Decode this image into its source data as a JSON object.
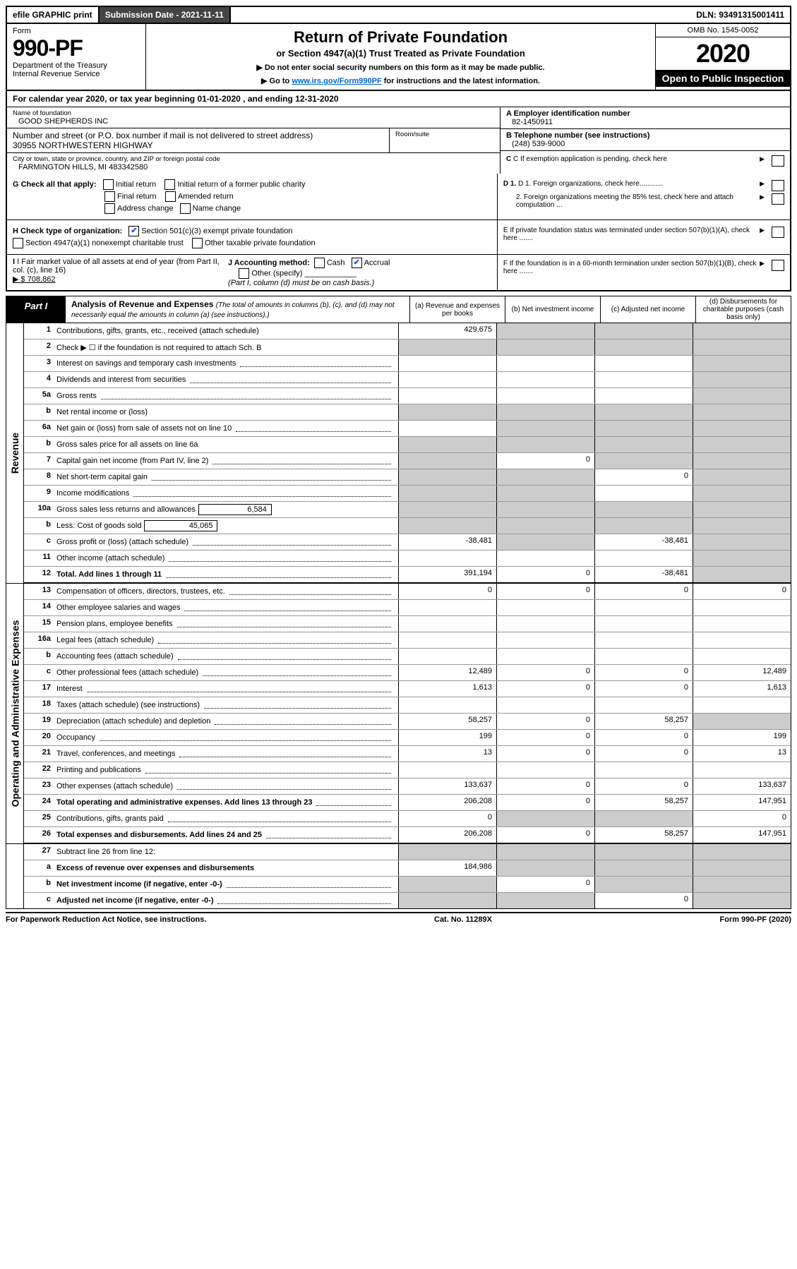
{
  "top": {
    "efile": "efile GRAPHIC print",
    "submission": "Submission Date - 2021-11-11",
    "dln": "DLN: 93491315001411"
  },
  "header": {
    "form_label": "Form",
    "form_num": "990-PF",
    "dept1": "Department of the Treasury",
    "dept2": "Internal Revenue Service",
    "title": "Return of Private Foundation",
    "subtitle": "or Section 4947(a)(1) Trust Treated as Private Foundation",
    "instr1": "▶ Do not enter social security numbers on this form as it may be made public.",
    "instr2_pre": "▶ Go to ",
    "instr2_link": "www.irs.gov/Form990PF",
    "instr2_post": " for instructions and the latest information.",
    "omb": "OMB No. 1545-0052",
    "year": "2020",
    "open": "Open to Public Inspection"
  },
  "cal_year": "For calendar year 2020, or tax year beginning 01-01-2020          , and ending 12-31-2020",
  "entity": {
    "name_lbl": "Name of foundation",
    "name": "GOOD SHEPHERDS INC",
    "addr_lbl": "Number and street (or P.O. box number if mail is not delivered to street address)",
    "addr": "30955 NORTHWESTERN HIGHWAY",
    "room_lbl": "Room/suite",
    "city_lbl": "City or town, state or province, country, and ZIP or foreign postal code",
    "city": "FARMINGTON HILLS, MI  483342580",
    "ein_lbl": "A Employer identification number",
    "ein": "82-1450911",
    "phone_lbl": "B Telephone number (see instructions)",
    "phone": "(248) 539-9000",
    "c_lbl": "C If exemption application is pending, check here"
  },
  "g_section": {
    "g_lbl": "G Check all that apply:",
    "initial_return": "Initial return",
    "initial_former": "Initial return of a former public charity",
    "final_return": "Final return",
    "amended": "Amended return",
    "address_change": "Address change",
    "name_change": "Name change"
  },
  "d_section": {
    "d1": "D 1. Foreign organizations, check here............",
    "d2": "2. Foreign organizations meeting the 85% test, check here and attach computation ...",
    "e": "E   If private foundation status was terminated under section 507(b)(1)(A), check here .......",
    "f": "F   If the foundation is in a 60-month termination under section 507(b)(1)(B), check here ......."
  },
  "h_section": {
    "h_lbl": "H Check type of organization:",
    "h1": "Section 501(c)(3) exempt private foundation",
    "h2": "Section 4947(a)(1) nonexempt charitable trust",
    "h3": "Other taxable private foundation",
    "i_lbl": "I Fair market value of all assets at end of year (from Part II, col. (c), line 16)",
    "i_val": "▶ $  708,862",
    "j_lbl": "J Accounting method:",
    "j_cash": "Cash",
    "j_accrual": "Accrual",
    "j_other": "Other (specify)",
    "j_note": "(Part I, column (d) must be on cash basis.)"
  },
  "part1": {
    "label": "Part I",
    "title": "Analysis of Revenue and Expenses",
    "note": "(The total of amounts in columns (b), (c), and (d) may not necessarily equal the amounts in column (a) (see instructions).)",
    "col_a": "(a)  Revenue and expenses per books",
    "col_b": "(b)  Net investment income",
    "col_c": "(c)  Adjusted net income",
    "col_d": "(d)  Disbursements for charitable purposes (cash basis only)"
  },
  "revenue_label": "Revenue",
  "expenses_label": "Operating and Administrative Expenses",
  "lines": {
    "l1": {
      "n": "1",
      "d": "Contributions, gifts, grants, etc., received (attach schedule)",
      "a": "429,675"
    },
    "l2": {
      "n": "2",
      "d": "Check ▶ ☐ if the foundation is not required to attach Sch. B"
    },
    "l3": {
      "n": "3",
      "d": "Interest on savings and temporary cash investments"
    },
    "l4": {
      "n": "4",
      "d": "Dividends and interest from securities"
    },
    "l5a": {
      "n": "5a",
      "d": "Gross rents"
    },
    "l5b": {
      "n": "b",
      "d": "Net rental income or (loss)"
    },
    "l6a": {
      "n": "6a",
      "d": "Net gain or (loss) from sale of assets not on line 10"
    },
    "l6b": {
      "n": "b",
      "d": "Gross sales price for all assets on line 6a"
    },
    "l7": {
      "n": "7",
      "d": "Capital gain net income (from Part IV, line 2)",
      "b": "0"
    },
    "l8": {
      "n": "8",
      "d": "Net short-term capital gain",
      "c": "0"
    },
    "l9": {
      "n": "9",
      "d": "Income modifications"
    },
    "l10a": {
      "n": "10a",
      "d": "Gross sales less returns and allowances",
      "inline": "6,584"
    },
    "l10b": {
      "n": "b",
      "d": "Less: Cost of goods sold",
      "inline": "45,065"
    },
    "l10c": {
      "n": "c",
      "d": "Gross profit or (loss) (attach schedule)",
      "a": "-38,481",
      "c": "-38,481"
    },
    "l11": {
      "n": "11",
      "d": "Other income (attach schedule)"
    },
    "l12": {
      "n": "12",
      "d": "Total. Add lines 1 through 11",
      "a": "391,194",
      "b": "0",
      "c": "-38,481"
    },
    "l13": {
      "n": "13",
      "d": "Compensation of officers, directors, trustees, etc.",
      "a": "0",
      "b": "0",
      "c": "0",
      "dd": "0"
    },
    "l14": {
      "n": "14",
      "d": "Other employee salaries and wages"
    },
    "l15": {
      "n": "15",
      "d": "Pension plans, employee benefits"
    },
    "l16a": {
      "n": "16a",
      "d": "Legal fees (attach schedule)"
    },
    "l16b": {
      "n": "b",
      "d": "Accounting fees (attach schedule)"
    },
    "l16c": {
      "n": "c",
      "d": "Other professional fees (attach schedule)",
      "a": "12,489",
      "b": "0",
      "c": "0",
      "dd": "12,489"
    },
    "l17": {
      "n": "17",
      "d": "Interest",
      "a": "1,613",
      "b": "0",
      "c": "0",
      "dd": "1,613"
    },
    "l18": {
      "n": "18",
      "d": "Taxes (attach schedule) (see instructions)"
    },
    "l19": {
      "n": "19",
      "d": "Depreciation (attach schedule) and depletion",
      "a": "58,257",
      "b": "0",
      "c": "58,257"
    },
    "l20": {
      "n": "20",
      "d": "Occupancy",
      "a": "199",
      "b": "0",
      "c": "0",
      "dd": "199"
    },
    "l21": {
      "n": "21",
      "d": "Travel, conferences, and meetings",
      "a": "13",
      "b": "0",
      "c": "0",
      "dd": "13"
    },
    "l22": {
      "n": "22",
      "d": "Printing and publications"
    },
    "l23": {
      "n": "23",
      "d": "Other expenses (attach schedule)",
      "a": "133,637",
      "b": "0",
      "c": "0",
      "dd": "133,637"
    },
    "l24": {
      "n": "24",
      "d": "Total operating and administrative expenses. Add lines 13 through 23",
      "a": "206,208",
      "b": "0",
      "c": "58,257",
      "dd": "147,951"
    },
    "l25": {
      "n": "25",
      "d": "Contributions, gifts, grants paid",
      "a": "0",
      "dd": "0"
    },
    "l26": {
      "n": "26",
      "d": "Total expenses and disbursements. Add lines 24 and 25",
      "a": "206,208",
      "b": "0",
      "c": "58,257",
      "dd": "147,951"
    },
    "l27": {
      "n": "27",
      "d": "Subtract line 26 from line 12:"
    },
    "l27a": {
      "n": "a",
      "d": "Excess of revenue over expenses and disbursements",
      "a": "184,986"
    },
    "l27b": {
      "n": "b",
      "d": "Net investment income (if negative, enter -0-)",
      "b": "0"
    },
    "l27c": {
      "n": "c",
      "d": "Adjusted net income (if negative, enter -0-)",
      "c": "0"
    }
  },
  "footer": {
    "left": "For Paperwork Reduction Act Notice, see instructions.",
    "mid": "Cat. No. 11289X",
    "right": "Form 990-PF (2020)"
  }
}
